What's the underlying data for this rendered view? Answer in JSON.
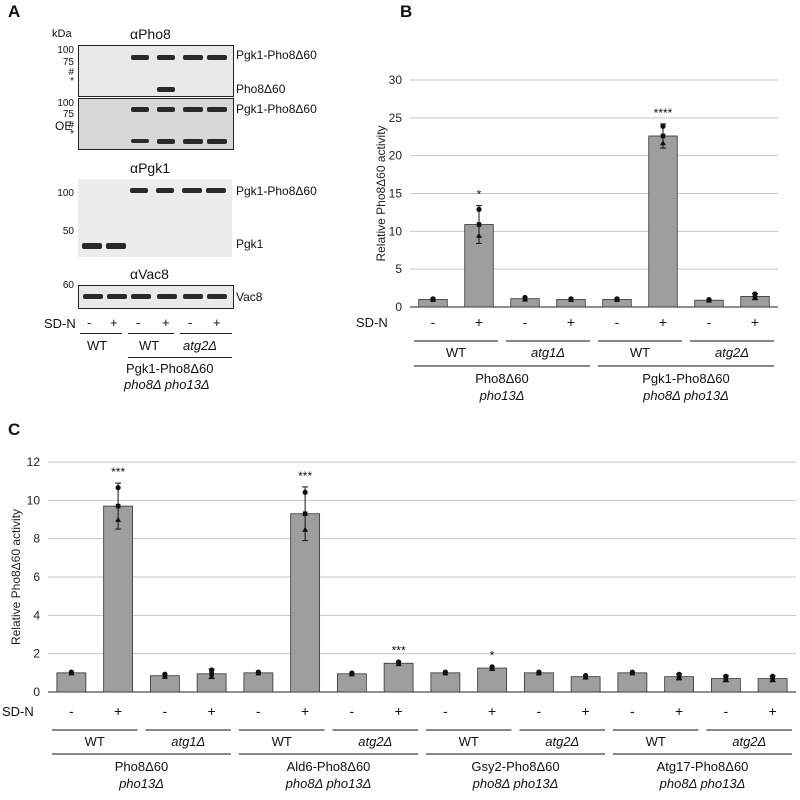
{
  "panels": {
    "a": "A",
    "b": "B",
    "c": "C"
  },
  "panel_a": {
    "kda": "kDa",
    "blots": {
      "pho8": {
        "title": "αPho8",
        "markers": [
          "100",
          "75",
          "#",
          "*"
        ],
        "labels": [
          "Pgk1-Pho8Δ60",
          "Pho8Δ60"
        ]
      },
      "pho8_oe": {
        "side": "OE",
        "markers": [
          "100",
          "75",
          "#",
          "*"
        ],
        "labels": [
          "Pgk1-Pho8Δ60"
        ]
      },
      "pgk1": {
        "title": "αPgk1",
        "markers": [
          "100",
          "50"
        ],
        "labels": [
          "Pgk1-Pho8Δ60",
          "Pgk1"
        ]
      },
      "vac8": {
        "title": "αVac8",
        "markers": [
          "60"
        ],
        "labels": [
          "Vac8"
        ]
      }
    },
    "sdn": "SD-N",
    "signs": [
      "-",
      "+",
      "-",
      "+",
      "-",
      "+"
    ],
    "groups": [
      "WT",
      "WT",
      "atg2Δ"
    ],
    "strain_line1": "Pgk1-Pho8Δ60",
    "strain_line2": "pho8Δ pho13Δ"
  },
  "chart_data": [
    {
      "type": "bar",
      "title": "",
      "ylabel": "Relative Pho8Δ60 activity",
      "xlabel": "",
      "ylim": [
        0,
        30
      ],
      "yticks": [
        "0",
        "5",
        "10",
        "15",
        "20",
        "25",
        "30"
      ],
      "categories": [
        "-",
        "+",
        "-",
        "+",
        "-",
        "+",
        "-",
        "+"
      ],
      "values": [
        1.0,
        10.9,
        1.1,
        1.0,
        1.0,
        22.6,
        0.9,
        1.4
      ],
      "errors": [
        0.1,
        2.5,
        0.2,
        0.1,
        0.1,
        1.6,
        0.1,
        0.4
      ],
      "significance": [
        "",
        "*",
        "",
        "",
        "",
        "****",
        "",
        ""
      ],
      "sdn": "SD-N",
      "genotypes": [
        "WT",
        "atg1Δ",
        "WT",
        "atg2Δ"
      ],
      "strains": [
        {
          "line1": "Pho8Δ60",
          "line2": "pho13Δ"
        },
        {
          "line1": "Pgk1-Pho8Δ60",
          "line2": "pho8Δ pho13Δ"
        }
      ]
    },
    {
      "type": "bar",
      "title": "",
      "ylabel": "Relative Pho8Δ60 activity",
      "xlabel": "",
      "ylim": [
        0,
        12
      ],
      "yticks": [
        "0",
        "2",
        "4",
        "6",
        "8",
        "10",
        "12"
      ],
      "categories": [
        "-",
        "+",
        "-",
        "+",
        "-",
        "+",
        "-",
        "+",
        "-",
        "+",
        "-",
        "+",
        "-",
        "+",
        "-",
        "+"
      ],
      "values": [
        1.0,
        9.7,
        0.85,
        0.95,
        1.0,
        9.3,
        0.95,
        1.5,
        1.0,
        1.25,
        1.0,
        0.8,
        1.0,
        0.8,
        0.7,
        0.7
      ],
      "errors": [
        0.05,
        1.2,
        0.1,
        0.25,
        0.05,
        1.4,
        0.05,
        0.08,
        0.05,
        0.08,
        0.05,
        0.08,
        0.05,
        0.15,
        0.15,
        0.15
      ],
      "significance": [
        "",
        "***",
        "",
        "",
        "",
        "***",
        "",
        "***",
        "",
        "*",
        "",
        "",
        "",
        "",
        "",
        ""
      ],
      "sdn": "SD-N",
      "genotypes": [
        "WT",
        "atg1Δ",
        "WT",
        "atg2Δ",
        "WT",
        "atg2Δ",
        "WT",
        "atg2Δ"
      ],
      "strains": [
        {
          "line1": "Pho8Δ60",
          "line2": "pho13Δ"
        },
        {
          "line1": "Ald6-Pho8Δ60",
          "line2": "pho8Δ pho13Δ"
        },
        {
          "line1": "Gsy2-Pho8Δ60",
          "line2": "pho8Δ pho13Δ"
        },
        {
          "line1": "Atg17-Pho8Δ60",
          "line2": "pho8Δ pho13Δ"
        }
      ]
    }
  ],
  "colors": {
    "bar": "#9e9e9e",
    "axis": "#222222",
    "grid": "#c8c8c8",
    "blot_bg": "#e6e6e6",
    "band": "#262626"
  }
}
